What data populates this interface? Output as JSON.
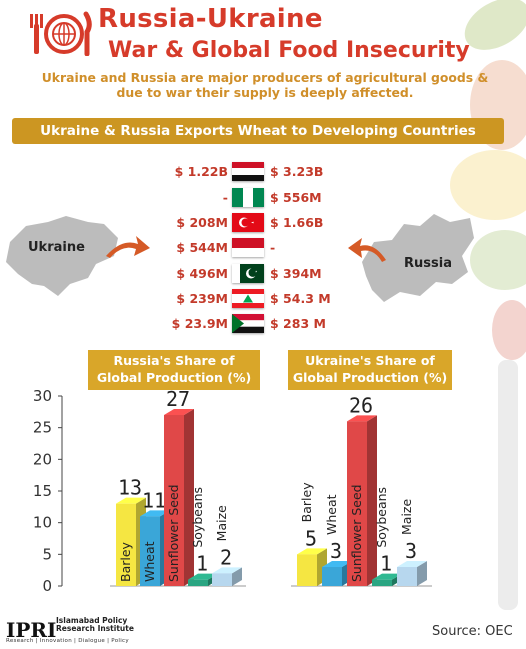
{
  "header": {
    "title_line1": "Russia-Ukraine",
    "title_line2": "War & Global Food Insecurity",
    "subtitle": "Ukraine and Russia are major producers of agricultural goods & due to war their supply is deeply affected.",
    "logo_icon": "plate-fork-knife-globe-icon"
  },
  "exports": {
    "banner": "Ukraine & Russia Exports Wheat to Developing Countries",
    "ukraine_label": "Ukraine",
    "russia_label": "Russia",
    "rows": [
      {
        "country_flag": "egypt-flag-icon",
        "ukraine": "$ 1.22B",
        "russia": "$ 3.23B"
      },
      {
        "country_flag": "nigeria-flag-icon",
        "ukraine": "-",
        "russia": "$ 556M"
      },
      {
        "country_flag": "turkey-flag-icon",
        "ukraine": "$ 208M",
        "russia": "$ 1.66B"
      },
      {
        "country_flag": "indonesia-flag-icon",
        "ukraine": "$ 544M",
        "russia": "-"
      },
      {
        "country_flag": "pakistan-flag-icon",
        "ukraine": "$ 496M",
        "russia": "$ 394M"
      },
      {
        "country_flag": "lebanon-flag-icon",
        "ukraine": "$ 239M",
        "russia": "$ 54.3 M"
      },
      {
        "country_flag": "sudan-flag-icon",
        "ukraine": "$ 23.9M",
        "russia": "$ 283 M"
      }
    ]
  },
  "chart_data": [
    {
      "type": "bar",
      "title": "Russia's Share of Global Production (%)",
      "title_line1": "Russia's Share of",
      "title_line2": "Global Production (%)",
      "categories": [
        "Barley",
        "Wheat",
        "Sunflower Seed",
        "Soybeans",
        "Maize"
      ],
      "values": [
        13,
        11,
        27,
        1,
        2
      ],
      "value_labels": [
        "13",
        "11",
        "27",
        "1",
        "2"
      ],
      "colors": [
        "#f5e642",
        "#3aa6d8",
        "#e04848",
        "#2aa582",
        "#b7d7ee"
      ],
      "ylim": [
        0,
        30
      ],
      "yticks": [
        "0",
        "5",
        "10",
        "15",
        "20",
        "25",
        "30"
      ]
    },
    {
      "type": "bar",
      "title": "Ukraine's Share of Global Production (%)",
      "title_line1": "Ukraine's Share of",
      "title_line2": "Global Production (%)",
      "categories": [
        "Barley",
        "Wheat",
        "Sunflower Seed",
        "Soybeans",
        "Maize"
      ],
      "values": [
        5,
        3,
        26,
        1,
        3
      ],
      "value_labels": [
        "5",
        "3",
        "26",
        "1",
        "3"
      ],
      "colors": [
        "#f5e642",
        "#3aa6d8",
        "#e04848",
        "#2aa582",
        "#b7d7ee"
      ],
      "ylim": [
        0,
        30
      ]
    }
  ],
  "footer": {
    "logo": "IPRI",
    "org_line1": "Islamabad Policy",
    "org_line2": "Research Institute",
    "tagline": "Research | Innovation | Dialogue | Policy",
    "source": "Source:  OEC"
  }
}
